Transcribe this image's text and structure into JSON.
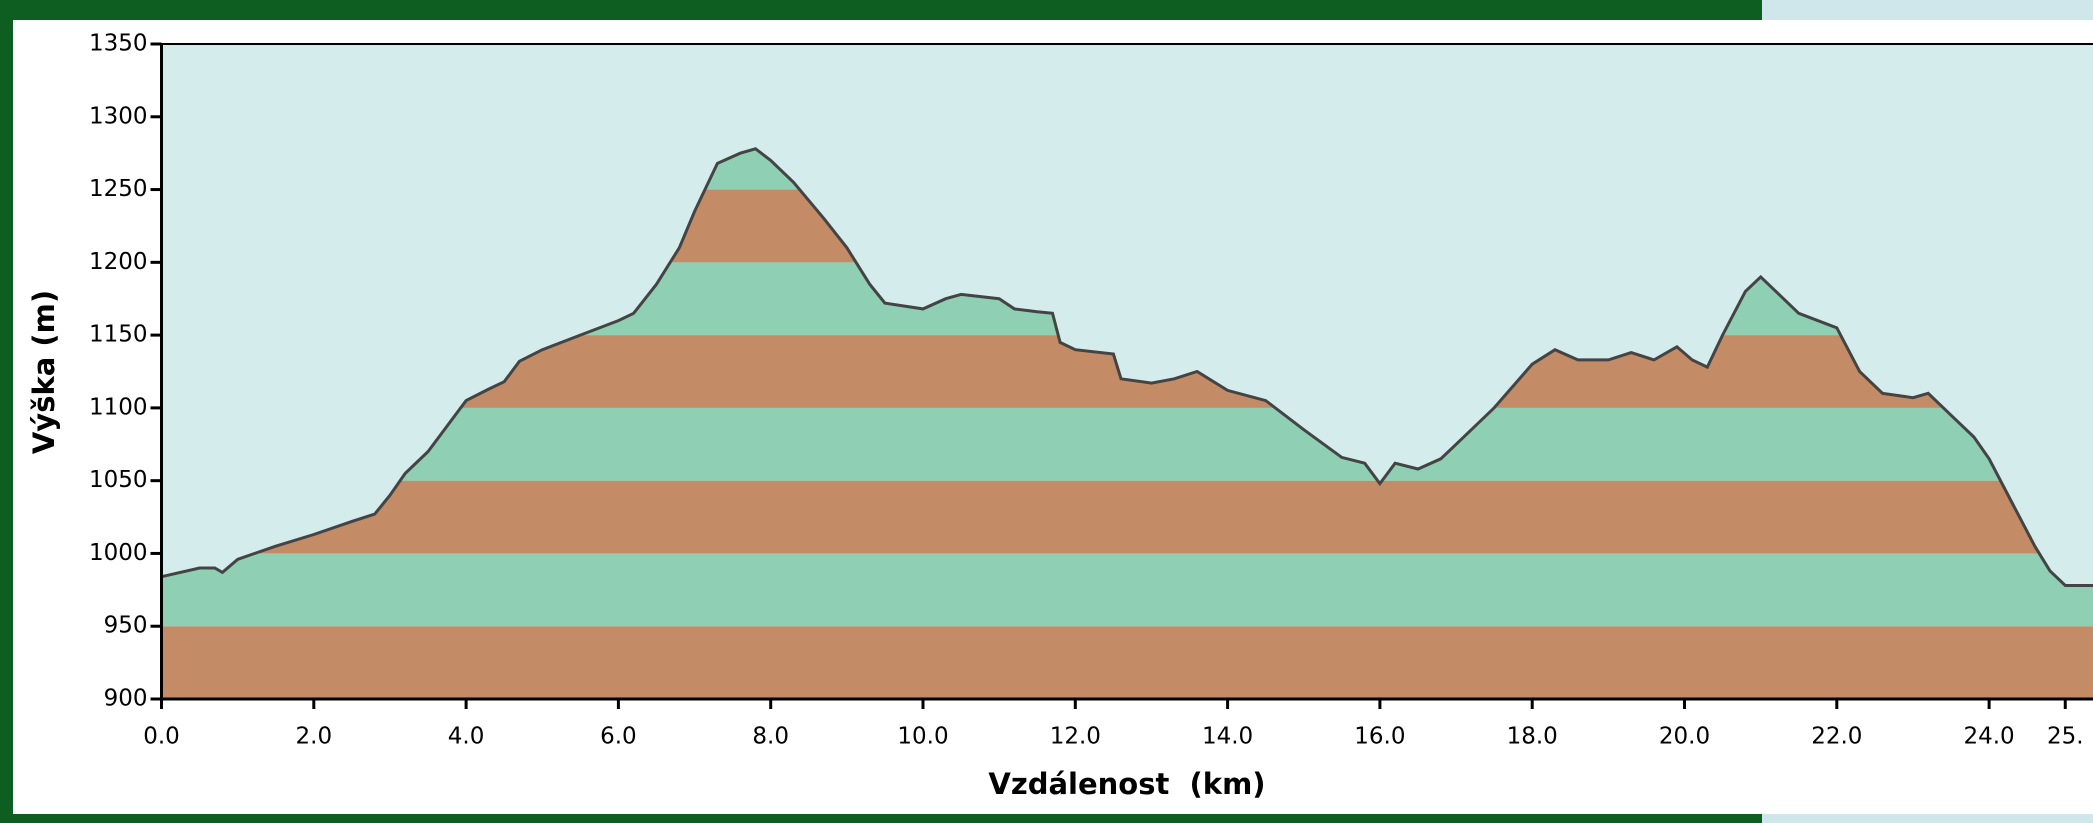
{
  "chart_data": {
    "type": "area",
    "x_label": "Vzdálenost  (km)",
    "y_label": "Výška (m)",
    "x": [
      0.0,
      0.5,
      0.7,
      0.8,
      1.0,
      1.5,
      2.0,
      2.5,
      2.8,
      3.0,
      3.2,
      3.5,
      4.0,
      4.3,
      4.5,
      4.7,
      5.0,
      5.5,
      6.0,
      6.2,
      6.5,
      6.8,
      7.0,
      7.3,
      7.6,
      7.8,
      8.0,
      8.3,
      8.7,
      9.0,
      9.3,
      9.5,
      10.0,
      10.3,
      10.5,
      11.0,
      11.2,
      11.5,
      11.7,
      11.8,
      12.0,
      12.5,
      12.6,
      13.0,
      13.3,
      13.6,
      14.0,
      14.5,
      15.0,
      15.5,
      15.8,
      16.0,
      16.2,
      16.5,
      16.8,
      17.0,
      17.5,
      18.0,
      18.3,
      18.6,
      19.0,
      19.3,
      19.6,
      19.9,
      20.1,
      20.3,
      20.5,
      20.8,
      21.0,
      21.2,
      21.5,
      22.0,
      22.3,
      22.6,
      23.0,
      23.2,
      23.5,
      23.8,
      24.0,
      24.3,
      24.6,
      24.8,
      25.0,
      25.4
    ],
    "values": [
      984,
      990,
      990,
      987,
      996,
      1005,
      1013,
      1022,
      1027,
      1040,
      1055,
      1070,
      1105,
      1113,
      1118,
      1132,
      1140,
      1150,
      1160,
      1165,
      1185,
      1210,
      1235,
      1268,
      1275,
      1278,
      1270,
      1255,
      1230,
      1210,
      1185,
      1172,
      1168,
      1175,
      1178,
      1175,
      1168,
      1166,
      1165,
      1145,
      1140,
      1137,
      1120,
      1117,
      1120,
      1125,
      1112,
      1105,
      1085,
      1066,
      1062,
      1048,
      1062,
      1058,
      1065,
      1075,
      1100,
      1130,
      1140,
      1133,
      1133,
      1138,
      1133,
      1142,
      1133,
      1128,
      1150,
      1180,
      1190,
      1180,
      1165,
      1155,
      1125,
      1110,
      1107,
      1110,
      1095,
      1080,
      1065,
      1035,
      1005,
      988,
      978,
      978
    ],
    "line_color": "#444444",
    "band_colors": [
      "#c48c66",
      "#8fd0b4"
    ],
    "background": "#d5ecec",
    "xlim": [
      0,
      25.4
    ],
    "ylim": [
      900,
      1350
    ],
    "xticks": [
      {
        "value": 0,
        "label": "0.0"
      },
      {
        "value": 2,
        "label": "2.0"
      },
      {
        "value": 4,
        "label": "4.0"
      },
      {
        "value": 6,
        "label": "6.0"
      },
      {
        "value": 8,
        "label": "8.0"
      },
      {
        "value": 10,
        "label": "10.0"
      },
      {
        "value": 12,
        "label": "12.0"
      },
      {
        "value": 14,
        "label": "14.0"
      },
      {
        "value": 16,
        "label": "16.0"
      },
      {
        "value": 18,
        "label": "18.0"
      },
      {
        "value": 20,
        "label": "20.0"
      },
      {
        "value": 22,
        "label": "22.0"
      },
      {
        "value": 24,
        "label": "24.0"
      },
      {
        "value": 25,
        "label": "25."
      }
    ],
    "yticks": [
      900,
      950,
      1000,
      1050,
      1100,
      1150,
      1200,
      1250,
      1300,
      1350
    ]
  }
}
